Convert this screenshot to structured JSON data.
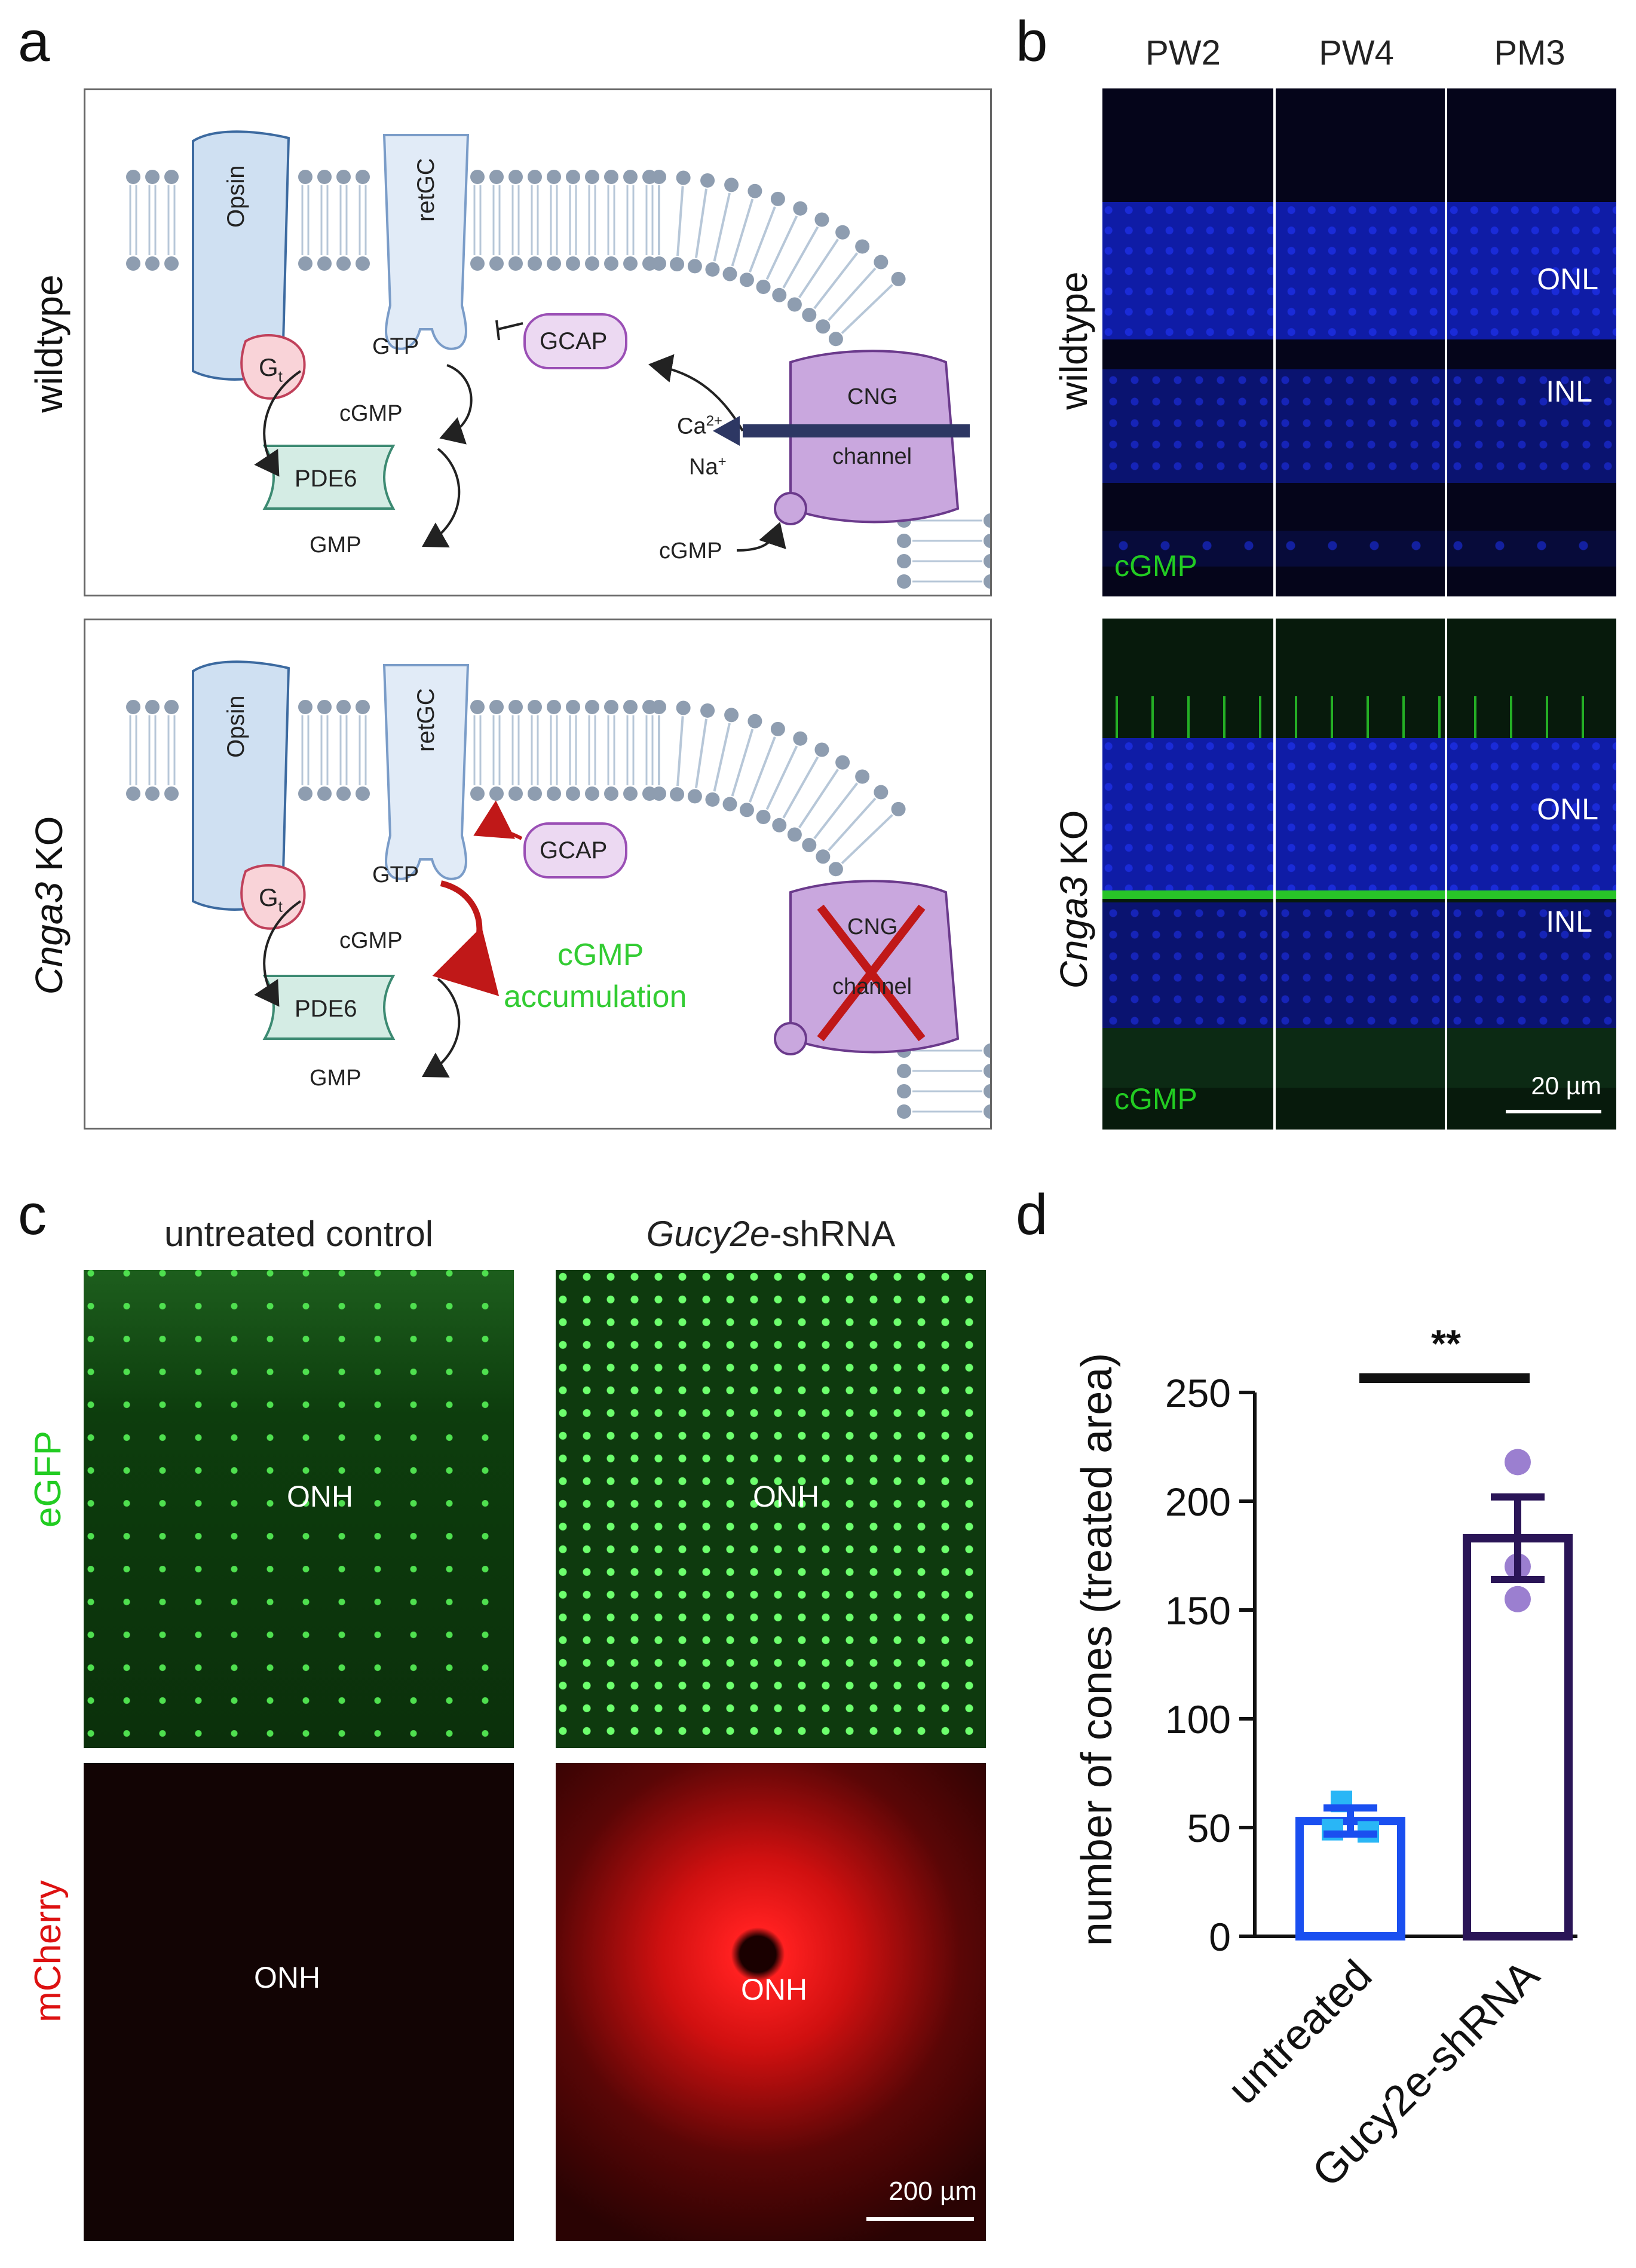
{
  "figure": {
    "panels": {
      "a": {
        "letter": "a",
        "rows": [
          {
            "label": "wildtype"
          },
          {
            "label_italic": "Cnga3",
            "label_rest": " KO"
          }
        ],
        "molecules": {
          "opsin": "Opsin",
          "retgc": "retGC",
          "gt_main": "G",
          "gt_sub": "t",
          "gcap": "GCAP",
          "pde6": "PDE6",
          "gtp": "GTP",
          "cgmp": "cGMP",
          "gmp": "GMP",
          "cng_top": "CNG",
          "cng_bottom": "channel",
          "ca": "Ca",
          "ca_sup": "2+",
          "na": "Na",
          "na_sup": "+",
          "cgmp_in": "cGMP",
          "accumulation_line1": "cGMP",
          "accumulation_line2": "accumulation"
        }
      },
      "b": {
        "letter": "b",
        "columns": [
          "PW2",
          "PW4",
          "PM3"
        ],
        "rows": [
          {
            "label": "wildtype"
          },
          {
            "label_italic": "Cnga3",
            "label_rest": " KO"
          }
        ],
        "layers": {
          "onl": "ONL",
          "inl": "INL"
        },
        "stain": "cGMP",
        "scalebar": "20 µm"
      },
      "c": {
        "letter": "c",
        "columns": [
          {
            "label": "untreated control"
          },
          {
            "label_italic": "Gucy2e",
            "label_rest": "-shRNA"
          }
        ],
        "channels": [
          {
            "label": "eGFP",
            "color": "#22cc22"
          },
          {
            "label": "mCherry",
            "color": "#dd1111"
          }
        ],
        "onh": "ONH",
        "scalebar": "200 µm"
      },
      "d": {
        "letter": "d",
        "significance": "**"
      }
    }
  },
  "chart_data": {
    "type": "bar",
    "categories": [
      "untreated",
      "Gucy2e-shRNA"
    ],
    "values": [
      53,
      183
    ],
    "errors": [
      6,
      19
    ],
    "points": [
      [
        62,
        49,
        48
      ],
      [
        218,
        170,
        155
      ]
    ],
    "colors": [
      "#1a4ff0",
      "#2a1557"
    ],
    "point_colors": [
      "#29b6f6",
      "#9b7fd0"
    ],
    "ylabel": "number of cones (treated area)",
    "xlabel": "",
    "ylim": [
      0,
      250
    ],
    "yticks": [
      0,
      50,
      100,
      150,
      200,
      250
    ],
    "grid": false
  }
}
